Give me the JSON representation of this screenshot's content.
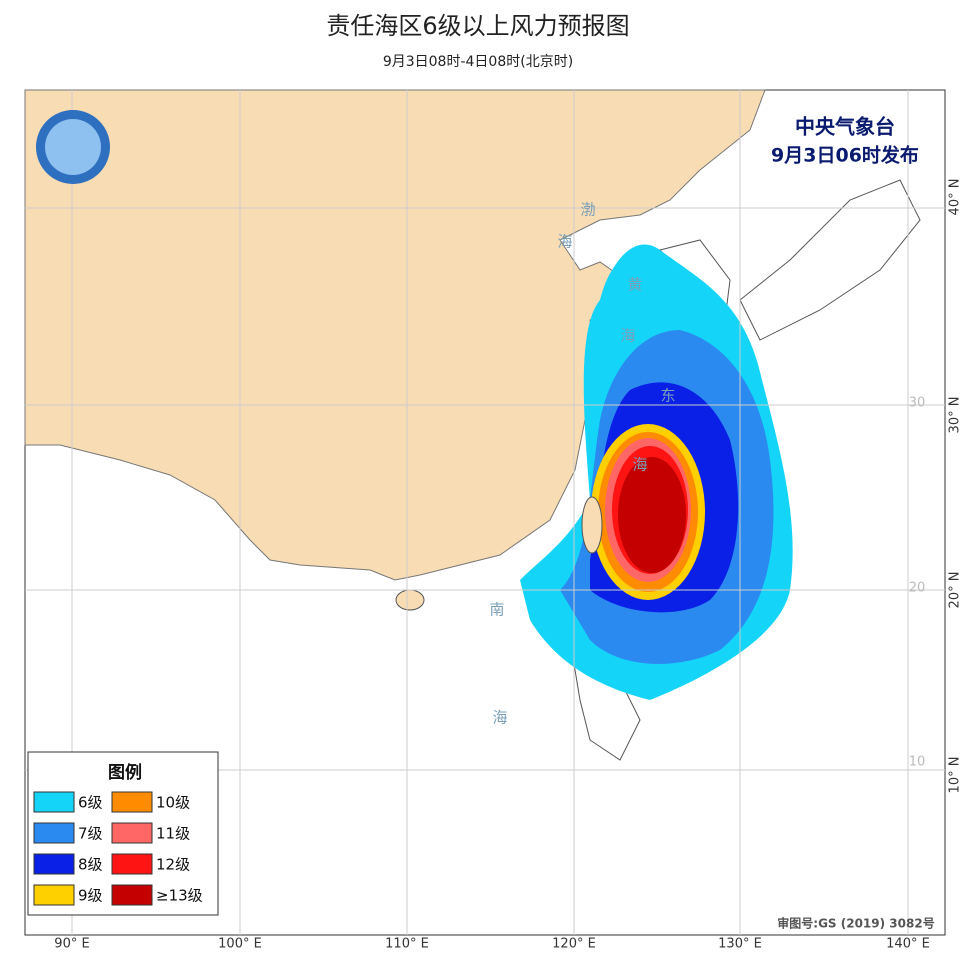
{
  "title": "责任海区6级以上风力预报图",
  "subtitle": "9月3日08时-4日08时(北京时)",
  "issuer": {
    "name": "中央气象台",
    "time": "9月3日06时发布"
  },
  "legend": {
    "title": "图例",
    "items": [
      {
        "label": "6级",
        "color": "#14d4f8"
      },
      {
        "label": "7级",
        "color": "#2b8af0"
      },
      {
        "label": "8级",
        "color": "#0a20e6"
      },
      {
        "label": "9级",
        "color": "#ffd000"
      },
      {
        "label": "10级",
        "color": "#ff8c00"
      },
      {
        "label": "11级",
        "color": "#ff6666"
      },
      {
        "label": "12级",
        "color": "#ff1414"
      },
      {
        "label": "≥13级",
        "color": "#c40000"
      }
    ]
  },
  "sea_labels": [
    "渤",
    "海",
    "黄",
    "海",
    "东",
    "海",
    "南",
    "海"
  ],
  "lon_labels": [
    "90° E",
    "100° E",
    "110° E",
    "120° E",
    "130° E",
    "140° E"
  ],
  "lat_labels": [
    "40° N",
    "30° N",
    "20° N",
    "10° N"
  ],
  "inner_lat_labels": [
    "30",
    "20",
    "10"
  ],
  "approval": "审图号:GS (2019) 3082号"
}
